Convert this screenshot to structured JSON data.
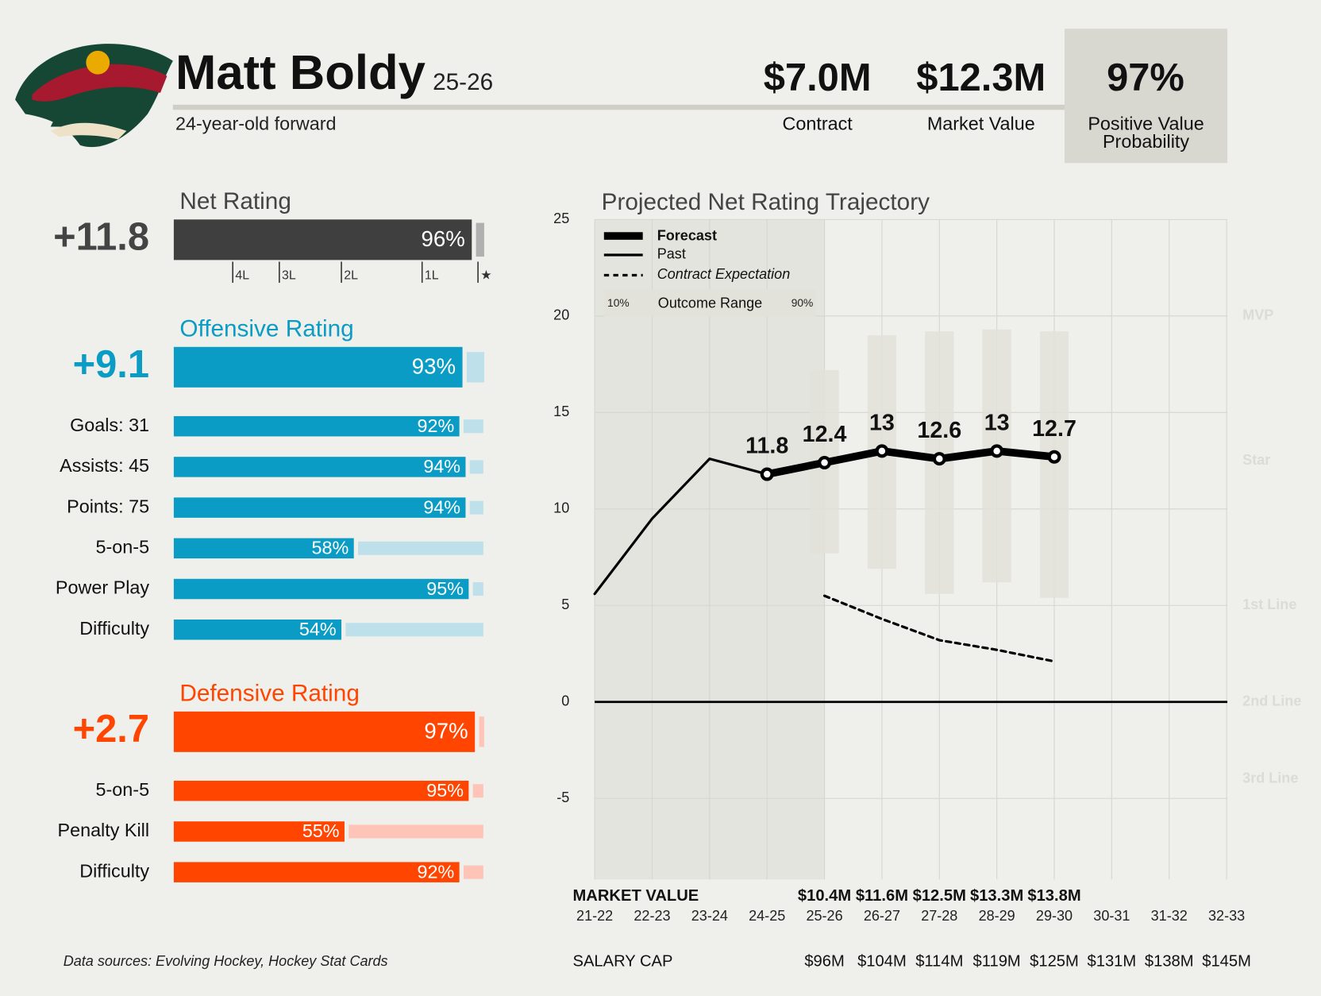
{
  "header": {
    "name": "Matt Boldy",
    "season": "25-26",
    "subtitle": "24-year-old forward",
    "stats": [
      {
        "value": "$7.0M",
        "label": "Contract"
      },
      {
        "value": "$12.3M",
        "label": "Market Value"
      },
      {
        "value": "97%",
        "label": "Positive Value Probability"
      }
    ]
  },
  "footer": {
    "sources": "Data sources: Evolving Hockey, Hockey Stat Cards"
  },
  "chart_data": [
    {
      "type": "percentile_bars",
      "xlim": [
        0,
        100
      ],
      "groups": [
        {
          "title": "Net Rating",
          "rating": "+11.8",
          "value": 96,
          "value_label": "96%",
          "color": "#3f3f3f",
          "track_color": "#b0b0b0",
          "markers": [
            {
              "value": 19,
              "label": "4L"
            },
            {
              "value": 34,
              "label": "3L"
            },
            {
              "value": 54,
              "label": "2L"
            },
            {
              "value": 80,
              "label": "1L"
            },
            {
              "value": 98,
              "label": "★"
            }
          ]
        },
        {
          "title": "Offensive Rating",
          "rating": "+9.1",
          "value": 93,
          "value_label": "93%",
          "color": "#0a9cc4",
          "track_color": "#bde0ea",
          "categories": [
            "Goals: 31",
            "Assists: 45",
            "Points: 75",
            "5-on-5",
            "Power Play",
            "Difficulty"
          ],
          "values": [
            92,
            94,
            94,
            58,
            95,
            54
          ],
          "value_labels": [
            "92%",
            "94%",
            "94%",
            "58%",
            "95%",
            "54%"
          ]
        },
        {
          "title": "Defensive Rating",
          "rating": "+2.7",
          "value": 97,
          "value_label": "97%",
          "color": "#ff4500",
          "track_color": "#ffc4b8",
          "categories": [
            "5-on-5",
            "Penalty Kill",
            "Difficulty"
          ],
          "values": [
            95,
            55,
            92
          ],
          "value_labels": [
            "95%",
            "55%",
            "92%"
          ]
        }
      ]
    },
    {
      "type": "line",
      "title": "Projected Net Rating Trajectory",
      "categories": [
        "21-22",
        "22-23",
        "23-24",
        "24-25",
        "25-26",
        "26-27",
        "27-28",
        "28-29",
        "29-30",
        "30-31",
        "31-32",
        "32-33"
      ],
      "ylim": [
        -9.2,
        25
      ],
      "yticks": [
        -5,
        0,
        5,
        10,
        15,
        20,
        25
      ],
      "grid": true,
      "series": [
        {
          "name": "Forecast",
          "color": "#000000",
          "values": [
            null,
            null,
            null,
            11.8,
            12.4,
            13.0,
            12.6,
            13.0,
            12.7,
            null,
            null,
            null
          ]
        },
        {
          "name": "Past",
          "color": "#000000",
          "values": [
            5.6,
            9.5,
            12.6,
            11.8,
            null,
            null,
            null,
            null,
            null,
            null,
            null,
            null
          ]
        },
        {
          "name": "Contract Expectation",
          "color": "#000000",
          "dashed": true,
          "values": [
            null,
            null,
            null,
            null,
            5.5,
            4.3,
            3.2,
            2.7,
            2.1,
            null,
            null,
            null
          ]
        }
      ],
      "range": {
        "name": "Outcome Range",
        "low_label": "10%",
        "high_label": "90%",
        "color": "#e2e2da",
        "low": [
          null,
          null,
          null,
          null,
          7.7,
          6.9,
          5.6,
          6.2,
          5.4,
          null,
          null,
          null
        ],
        "high": [
          null,
          null,
          null,
          null,
          17.2,
          19.0,
          19.2,
          19.3,
          19.2,
          null,
          null,
          null
        ]
      },
      "tiers": [
        {
          "value": 20,
          "label": "MVP"
        },
        {
          "value": 12.5,
          "label": "Star"
        },
        {
          "value": 5,
          "label": "1st Line"
        },
        {
          "value": 0,
          "label": "2nd Line"
        },
        {
          "value": -4,
          "label": "3rd Line"
        }
      ],
      "market_value": {
        "label": "MARKET VALUE",
        "values": [
          null,
          null,
          null,
          null,
          "$10.4M",
          "$11.6M",
          "$12.5M",
          "$13.3M",
          "$13.8M",
          null,
          null,
          null
        ]
      },
      "salary_cap": {
        "label": "SALARY CAP",
        "values": [
          null,
          null,
          null,
          null,
          "$96M",
          "$104M",
          "$114M",
          "$119M",
          "$125M",
          "$131M",
          "$138M",
          "$145M"
        ]
      }
    }
  ]
}
